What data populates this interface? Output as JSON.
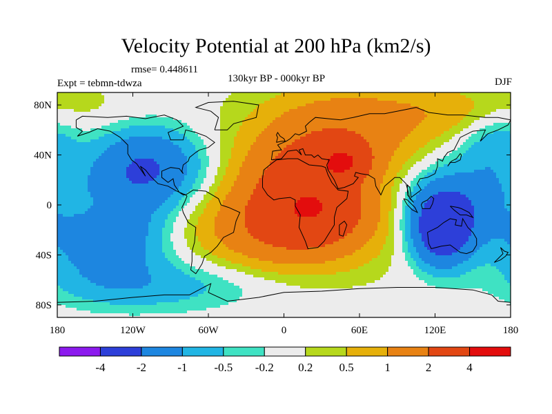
{
  "header": {
    "title": "Velocity Potential at 200 hPa (km2/s)",
    "rmse": "rmse= 0.448611",
    "left": "Expt = tebmn-tdwza",
    "center": "130kyr BP - 000kyr BP",
    "right": "DJF"
  },
  "chart_data": {
    "type": "heatmap",
    "title": "Velocity Potential at 200 hPa (km2/s)",
    "subtitle": "130kyr BP - 000kyr BP",
    "xlabel": "",
    "ylabel": "",
    "xlim": [
      -180,
      180
    ],
    "ylim": [
      -90,
      90
    ],
    "x_ticks": [
      -180,
      -120,
      -60,
      0,
      60,
      120,
      180
    ],
    "x_tick_labels": [
      "180",
      "120W",
      "60W",
      "0",
      "60E",
      "120E",
      "180"
    ],
    "y_ticks": [
      80,
      40,
      0,
      -40,
      -80
    ],
    "y_tick_labels": [
      "80N",
      "40N",
      "0",
      "40S",
      "80S"
    ],
    "colorbar": {
      "levels": [
        -4,
        -2,
        -1,
        -0.5,
        -0.2,
        0.2,
        0.5,
        1,
        2,
        4
      ],
      "labels": [
        "-4",
        "-2",
        "-1",
        "-0.5",
        "-0.2",
        "0.2",
        "0.5",
        "1",
        "2",
        "4"
      ],
      "colors": [
        "#8c1aee",
        "#2d3fd9",
        "#1d86e0",
        "#21b5e4",
        "#3fe2c3",
        "#ececec",
        "#b6d81c",
        "#e6b00a",
        "#e88213",
        "#e24713",
        "#e30d0d"
      ]
    },
    "field_centers": [
      {
        "lon": 15,
        "lat": 10,
        "value": 2.6,
        "spread_lon": 34,
        "spread_lat": 28
      },
      {
        "lon": 48,
        "lat": 35,
        "value": 2.2,
        "spread_lon": 14,
        "spread_lat": 10
      },
      {
        "lon": 45,
        "lat": 55,
        "value": 1.4,
        "spread_lon": 45,
        "spread_lat": 25
      },
      {
        "lon": 0,
        "lat": -20,
        "value": 1.5,
        "spread_lon": 50,
        "spread_lat": 22
      },
      {
        "lon": 35,
        "lat": -5,
        "value": 0.8,
        "spread_lon": 25,
        "spread_lat": 15
      },
      {
        "lon": 125,
        "lat": -20,
        "value": -3.0,
        "spread_lon": 16,
        "spread_lat": 20
      },
      {
        "lon": 140,
        "lat": 0,
        "value": -1.5,
        "spread_lon": 30,
        "spread_lat": 25
      },
      {
        "lon": -110,
        "lat": 30,
        "value": -2.2,
        "spread_lon": 30,
        "spread_lat": 22
      },
      {
        "lon": -140,
        "lat": -25,
        "value": -1.8,
        "spread_lon": 32,
        "spread_lat": 25
      },
      {
        "lon": -165,
        "lat": 0,
        "value": 0.6,
        "spread_lon": 12,
        "spread_lat": 7
      },
      {
        "lon": 170,
        "lat": 50,
        "value": -0.9,
        "spread_lon": 20,
        "spread_lat": 20
      },
      {
        "lon": -100,
        "lat": -65,
        "value": -0.8,
        "spread_lon": 60,
        "spread_lat": 15
      },
      {
        "lon": 130,
        "lat": 75,
        "value": 0.6,
        "spread_lon": 60,
        "spread_lat": 15
      }
    ],
    "field_background": 0.1
  },
  "continents": {
    "north_america": "coastline",
    "south_america": "coastline",
    "africa": "coastline",
    "eurasia": "coastline",
    "australia": "coastline",
    "antarctica": "coastline",
    "greenland": "coastline"
  }
}
